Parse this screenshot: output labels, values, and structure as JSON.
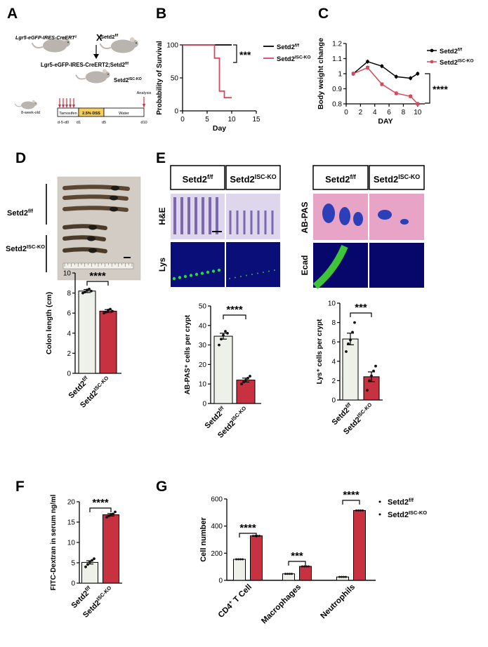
{
  "colors": {
    "wt": "#eef1ea",
    "ko": "#c8313f",
    "ko_line": "#d24a5c",
    "axis": "#000000",
    "bar_edge": "#000000"
  },
  "panels": {
    "A": {
      "letter": "A",
      "cross_left": "Lgr5-eGFP-IRES-CreERT",
      "cross_left_sup": "2",
      "cross_x": "X",
      "cross_right": "Setd2",
      "cross_right_sup": "f/f",
      "offspring": "Lgr5-eGFP-IRES-CreERT2;Setd2",
      "offspring_sup": "f/f",
      "ko_label": "Setd2",
      "ko_label_sup": "ISC-KO",
      "mouse_age": "8-week-old",
      "timeline": [
        {
          "label": "Tamoxifen",
          "fill": "#ffffff"
        },
        {
          "label": "2.5% DSS",
          "fill": "#f5cf5a"
        },
        {
          "label": "Water",
          "fill": "#ffffff"
        }
      ],
      "days": [
        "d-5-d0",
        "d1",
        "d5",
        "d10"
      ],
      "analysis": "Analysis",
      "arrow_color": "#c8313f"
    },
    "B": {
      "letter": "B",
      "sig": "***"
    },
    "C": {
      "letter": "C",
      "sig": "****"
    },
    "D": {
      "letter": "D",
      "photo_labels": [
        {
          "main": "Setd2",
          "sup": "f/f"
        },
        {
          "main": "Setd2",
          "sup": "ISC-KO"
        }
      ],
      "photo_ruler": "1 2 3 4 5 6 7 8 9 10",
      "sig": "****"
    },
    "E": {
      "letter": "E",
      "headers": [
        {
          "main": "Setd2",
          "sup": "f/f"
        },
        {
          "main": "Setd2",
          "sup": "ISC-KO"
        }
      ],
      "left_rows": [
        "H&E",
        "Lys"
      ],
      "right_rows": [
        "AB-PAS",
        "Ecad"
      ],
      "sig_left": "****",
      "sig_right": "***"
    },
    "F": {
      "letter": "F",
      "sig": "****"
    },
    "G": {
      "letter": "G",
      "sigs": [
        "****",
        "***",
        "****"
      ]
    }
  },
  "chart_data": [
    {
      "panel": "B",
      "type": "line",
      "xlabel": "Day",
      "ylabel": "Probability of Survival",
      "xlim": [
        0,
        15
      ],
      "ylim": [
        0,
        100
      ],
      "xticks": [
        0,
        5,
        10,
        15
      ],
      "yticks": [
        0,
        50,
        100
      ],
      "legend_position": "right",
      "series": [
        {
          "name": "Setd2f/f",
          "name_main": "Setd2",
          "name_sup": "f/f",
          "x": [
            0,
            10
          ],
          "y": [
            100,
            100
          ]
        },
        {
          "name": "Setd2ISC-KO",
          "name_main": "Setd2",
          "name_sup": "ISC-KO",
          "x": [
            0,
            6.5,
            6.5,
            7.5,
            7.5,
            8.5,
            8.5,
            10
          ],
          "y": [
            100,
            100,
            80,
            80,
            30,
            30,
            20,
            20
          ]
        }
      ]
    },
    {
      "panel": "C",
      "type": "line",
      "xlabel": "DAY",
      "ylabel": "Body weight change",
      "xlim": [
        0,
        11
      ],
      "ylim": [
        0.8,
        1.2
      ],
      "xticks": [
        0,
        2,
        4,
        6,
        8,
        10
      ],
      "yticks": [
        0.8,
        0.9,
        1.0,
        1.1,
        1.2
      ],
      "legend_position": "top-right",
      "series": [
        {
          "name": "Setd2f/f",
          "name_main": "Setd2",
          "name_sup": "f/f",
          "x": [
            1,
            3,
            5,
            7,
            9,
            10
          ],
          "y": [
            1.0,
            1.08,
            1.05,
            0.98,
            0.97,
            1.0
          ]
        },
        {
          "name": "Setd2ISC-KO",
          "name_main": "Setd2",
          "name_sup": "ISC-KO",
          "x": [
            1,
            3,
            5,
            7,
            9,
            10
          ],
          "y": [
            1.0,
            1.04,
            0.93,
            0.87,
            0.85,
            0.8
          ]
        }
      ]
    },
    {
      "panel": "D",
      "type": "bar",
      "ylabel": "Colon length (cm)",
      "ylim": [
        0,
        10
      ],
      "yticks": [
        0,
        2,
        4,
        6,
        8,
        10
      ],
      "categories": [
        {
          "main": "Setd2",
          "sup": "f/f"
        },
        {
          "main": "Setd2",
          "sup": "ISC-KO"
        }
      ],
      "values": [
        8.2,
        6.2
      ],
      "errors": [
        0.15,
        0.15
      ],
      "points": [
        [
          8.0,
          8.1,
          8.3,
          8.4,
          8.2
        ],
        [
          6.0,
          6.1,
          6.3,
          6.4,
          6.2
        ]
      ]
    },
    {
      "panel": "E1",
      "type": "bar",
      "ylabel": "AB-PAS⁺ cells per crypt",
      "ylim": [
        0,
        50
      ],
      "yticks": [
        0,
        10,
        20,
        30,
        40,
        50
      ],
      "categories": [
        {
          "main": "Setd2",
          "sup": "f/f"
        },
        {
          "main": "Setd2",
          "sup": "ISC-KO"
        }
      ],
      "values": [
        34.5,
        12
      ],
      "errors": [
        1.5,
        1
      ],
      "points": [
        [
          30,
          33,
          35,
          37,
          36
        ],
        [
          10,
          11,
          12,
          13,
          14
        ]
      ]
    },
    {
      "panel": "E2",
      "type": "bar",
      "ylabel": "Lys⁺ cells per crypt",
      "ylim": [
        0,
        10
      ],
      "yticks": [
        0,
        2,
        4,
        6,
        8,
        10
      ],
      "categories": [
        {
          "main": "Setd2",
          "sup": "f/f"
        },
        {
          "main": "Setd2",
          "sup": "ISC-KO"
        }
      ],
      "values": [
        6.3,
        2.4
      ],
      "errors": [
        0.6,
        0.5
      ],
      "points": [
        [
          5.0,
          5.8,
          6.2,
          7.0,
          8.0
        ],
        [
          1.0,
          2.0,
          2.5,
          3.0,
          3.5
        ]
      ]
    },
    {
      "panel": "F",
      "type": "bar",
      "ylabel": "FITC-Dextran in serum ng/ml",
      "ylim": [
        0,
        20
      ],
      "yticks": [
        0,
        5,
        10,
        15,
        20
      ],
      "categories": [
        {
          "main": "Setd2",
          "sup": "f/f"
        },
        {
          "main": "Setd2",
          "sup": "ISC-KO"
        }
      ],
      "values": [
        5.1,
        16.8
      ],
      "errors": [
        0.4,
        0.3
      ],
      "points": [
        [
          4.0,
          4.6,
          5.2,
          5.6,
          6.0
        ],
        [
          16.2,
          16.5,
          16.8,
          17.0,
          17.5
        ]
      ]
    },
    {
      "panel": "G",
      "type": "bar",
      "ylabel": "Cell number",
      "ylim": [
        0,
        600
      ],
      "yticks": [
        0,
        200,
        400,
        600
      ],
      "categories": [
        {
          "main": "CD4",
          "sup": "+",
          "rest": " T Cell"
        },
        {
          "main": "Macrophages",
          "sup": "",
          "rest": ""
        },
        {
          "main": "Neutrophils",
          "sup": "",
          "rest": ""
        }
      ],
      "legend_position": "top-right",
      "series": [
        {
          "name": "Setd2f/f",
          "name_main": "Setd2",
          "name_sup": "f/f",
          "values": [
            155,
            48,
            25
          ]
        },
        {
          "name": "Setd2ISC-KO",
          "name_main": "Setd2",
          "name_sup": "ISC-KO",
          "values": [
            328,
            103,
            515
          ]
        }
      ]
    }
  ]
}
